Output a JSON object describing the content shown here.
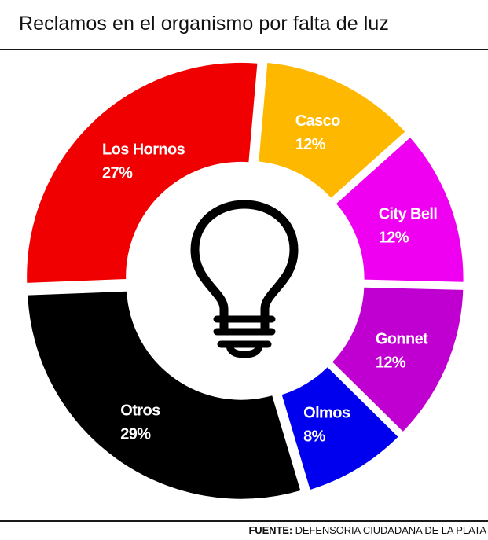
{
  "chart_data": {
    "type": "pie",
    "title": "Reclamos en el organismo por falta de luz",
    "categories": [
      "Casco",
      "City Bell",
      "Gonnet",
      "Olmos",
      "Otros",
      "Los Hornos"
    ],
    "values": [
      12,
      12,
      12,
      8,
      29,
      27
    ],
    "value_labels": [
      "12%",
      "12%",
      "12%",
      "8%",
      "29%",
      "27%"
    ],
    "colors": [
      "#FFB800",
      "#F000F0",
      "#C000D0",
      "#0000EE",
      "#000000",
      "#F00000"
    ],
    "label_colors": [
      "#ffffff",
      "#ffffff",
      "#ffffff",
      "#ffffff",
      "#ffffff",
      "#ffffff"
    ],
    "style": "donut",
    "center_icon": "light-bulb-icon"
  },
  "footer": {
    "source_label": "FUENTE:",
    "source_value": "DEFENSORIA CIUDADANA DE LA PLATA"
  }
}
